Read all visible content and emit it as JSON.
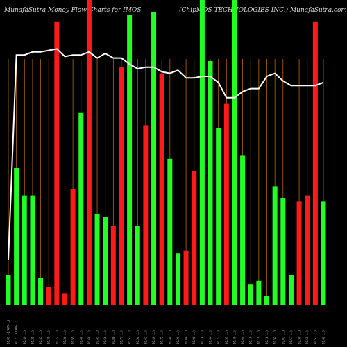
{
  "header": {
    "left": "MunafaSutra  Money Flow  Charts for IMOS",
    "right": "(ChipMOS TECHNOLOGIES INC.) MunafaSutra.com"
  },
  "chart_data": {
    "type": "bar",
    "title": "MunafaSutra  Money Flow  Charts for IMOS",
    "subtitle": "(ChipMOS TECHNOLOGIES INC.) MunafaSutra.com",
    "categories": [
      "20.09 (-2.98%  ...)",
      "20.71 (1.08%  ...)",
      "20.49 (...)",
      "20.25 (...)",
      "20.45 (...)",
      "20.30 (...)",
      "20.22 (...)",
      "20.26 (...)",
      "20.55 (...)",
      "20.40 (...)",
      "20.60 (...)",
      "20.45 (...)",
      "20.66 (...)",
      "20.80 (...)",
      "20.77 (...)",
      "20.57 (...)",
      "20.54 (...)",
      "20.62 (...)",
      "20.49 (...)",
      "20.72 (...)",
      "20.40 (...)",
      "20.29 (...)",
      "20.64 (...)",
      "20.08 (...)",
      "20.18 (...)",
      "20.44 (...)",
      "20.73 (...)",
      "20.53 (...)",
      "20.49 (...)",
      "20.04 (...)",
      "20.10 (...)",
      "20.19 (...)",
      "20.18 (...)",
      "20.52 (...)",
      "20.63 (...)",
      "20.57 (...)",
      "20.50 (...)",
      "20.58 (...)",
      "20.51 (...)",
      "20.42 (...)"
    ],
    "bars": {
      "direction": [
        "up",
        "up",
        "up",
        "up",
        "up",
        "down",
        "down",
        "down",
        "down",
        "up",
        "down",
        "up",
        "up",
        "down",
        "down",
        "up",
        "up",
        "down",
        "up",
        "down",
        "up",
        "up",
        "down",
        "down",
        "up",
        "up",
        "up",
        "down",
        "up",
        "up",
        "up",
        "up",
        "up",
        "up",
        "up",
        "up",
        "down",
        "down",
        "down",
        "up"
      ],
      "values": [
        0.1,
        0.45,
        0.36,
        0.36,
        0.09,
        0.06,
        0.93,
        0.04,
        0.38,
        0.63,
        1.0,
        0.3,
        0.29,
        0.26,
        0.78,
        0.95,
        0.26,
        0.59,
        0.96,
        0.76,
        0.48,
        0.17,
        0.18,
        0.44,
        1.0,
        0.8,
        0.58,
        0.66,
        1.0,
        0.49,
        0.07,
        0.08,
        0.03,
        0.39,
        0.35,
        0.1,
        0.34,
        0.36,
        0.93,
        0.34
      ]
    },
    "price_line": {
      "values": [
        0.15,
        0.82,
        0.82,
        0.83,
        0.83,
        0.835,
        0.84,
        0.815,
        0.82,
        0.82,
        0.83,
        0.81,
        0.825,
        0.81,
        0.81,
        0.79,
        0.775,
        0.78,
        0.78,
        0.765,
        0.76,
        0.77,
        0.745,
        0.745,
        0.75,
        0.75,
        0.73,
        0.68,
        0.68,
        0.7,
        0.71,
        0.71,
        0.75,
        0.76,
        0.735,
        0.72,
        0.72,
        0.72,
        0.72,
        0.73
      ]
    },
    "colors": {
      "up": "#22ff22",
      "down": "#ff1a1a",
      "price_line": "#ffffff",
      "grid": "#b36a00",
      "background": "#000000"
    },
    "grid": true
  }
}
